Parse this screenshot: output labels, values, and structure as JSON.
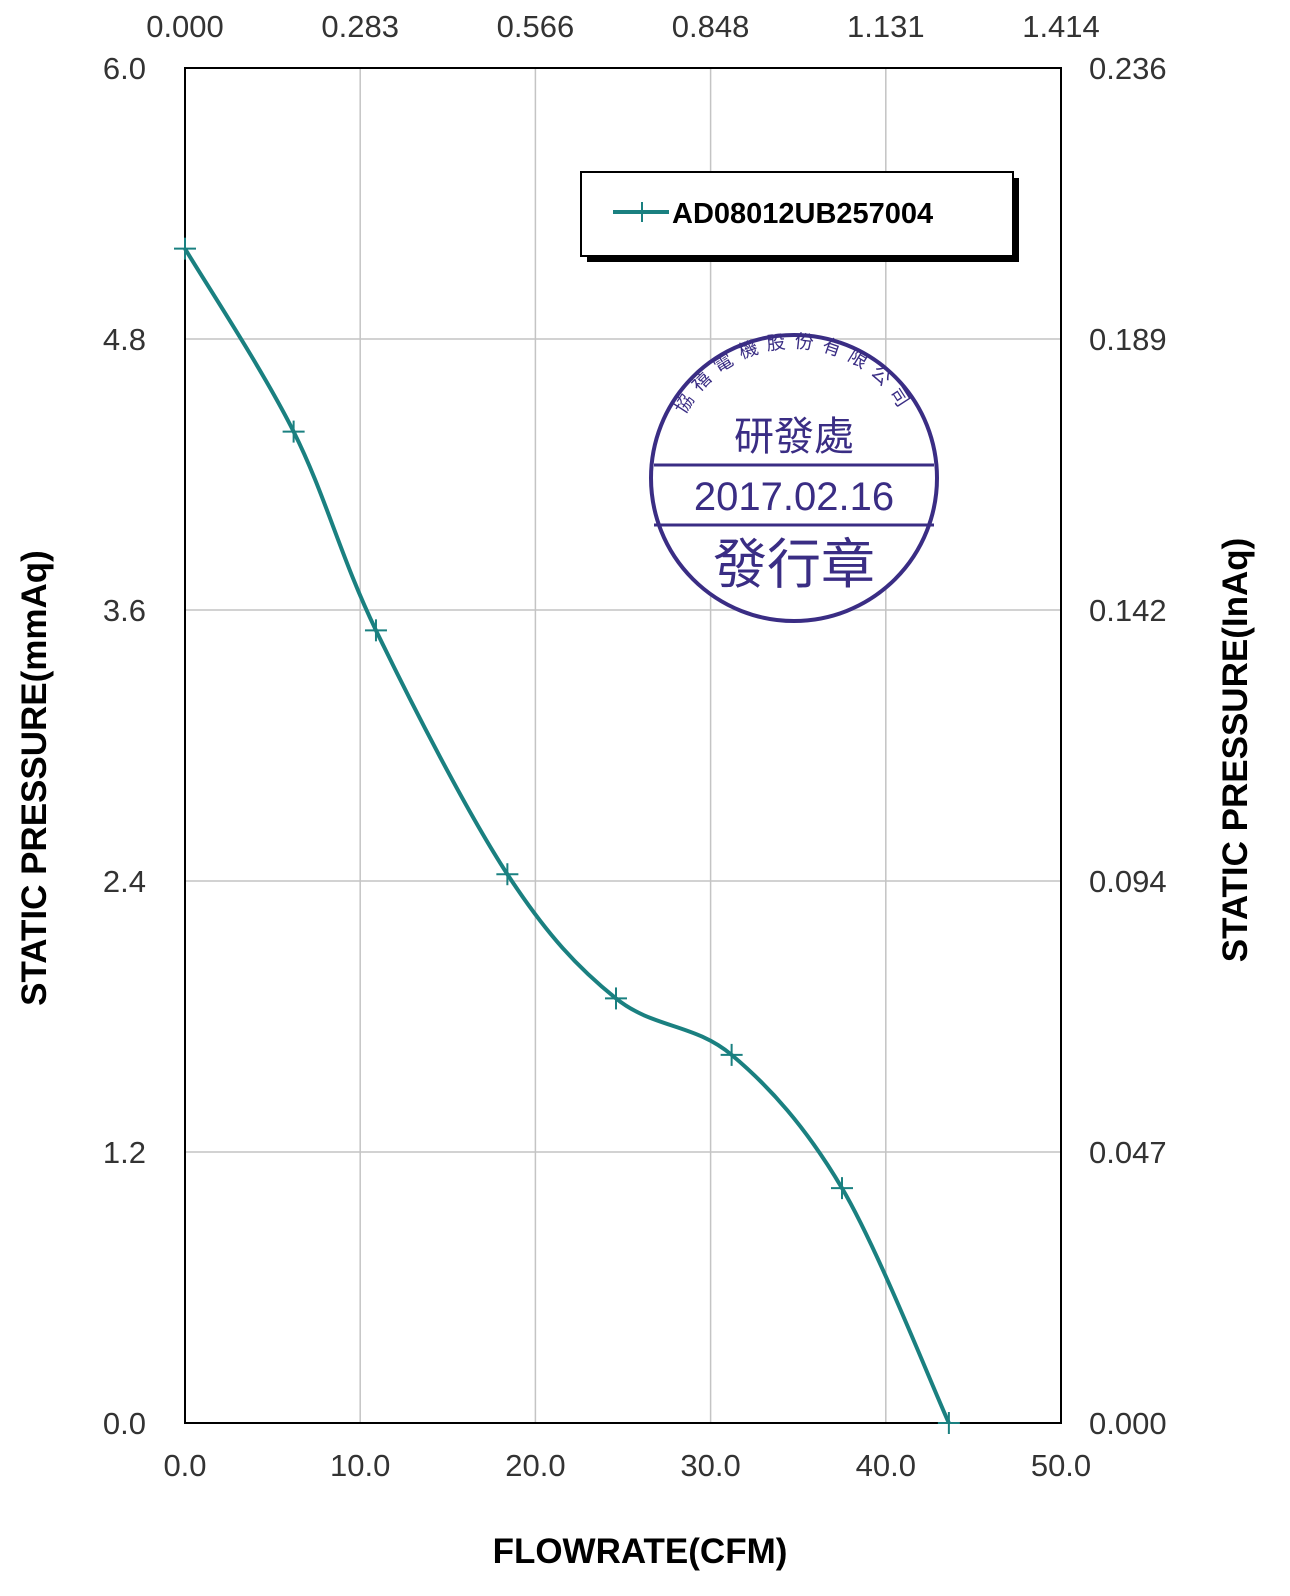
{
  "chart_data": {
    "type": "line",
    "xlabel": "FLOWRATE(CFM)",
    "ylabel_left": "STATIC PRESSURE(mmAq)",
    "ylabel_right": "STATIC PRESSURE(InAq)",
    "xlim": [
      0,
      50
    ],
    "ylim": [
      0,
      6
    ],
    "x_ticks_bottom": [
      "0.0",
      "10.0",
      "20.0",
      "30.0",
      "40.0",
      "50.0"
    ],
    "x_ticks_top": [
      "0.000",
      "0.283",
      "0.566",
      "0.848",
      "1.131",
      "1.414"
    ],
    "y_ticks_left": [
      "0.0",
      "1.2",
      "2.4",
      "3.6",
      "4.8",
      "6.0"
    ],
    "y_ticks_right": [
      "0.000",
      "0.047",
      "0.094",
      "0.142",
      "0.189",
      "0.236"
    ],
    "grid": true,
    "legend_position": "top-right",
    "series": [
      {
        "name": "AD08012UB257004",
        "color": "#1a8080",
        "marker": "plus",
        "x": [
          0.0,
          6.2,
          10.9,
          18.4,
          24.6,
          31.2,
          37.5,
          43.6
        ],
        "y": [
          5.2,
          4.39,
          3.51,
          2.43,
          1.88,
          1.63,
          1.04,
          0.0
        ]
      }
    ]
  },
  "stamp": {
    "company": "協禧電機股份有限公司",
    "department": "研發處",
    "date": "2017.02.16",
    "label": "發行章",
    "color": "#3a2d84"
  }
}
